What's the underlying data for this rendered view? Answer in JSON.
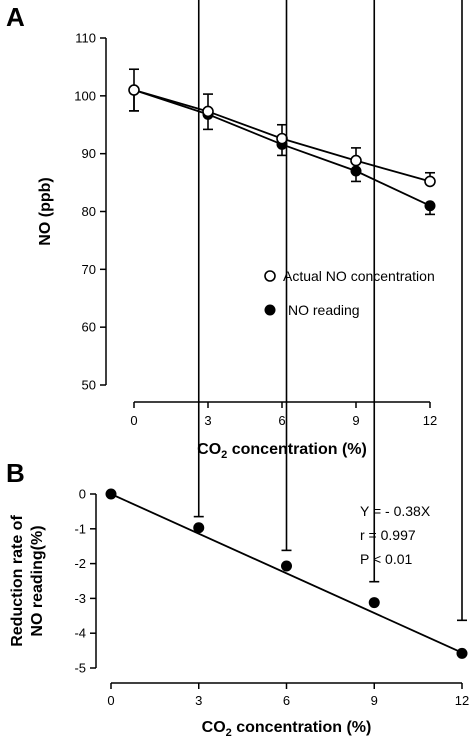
{
  "chart_data": [
    {
      "panel": "A",
      "type": "line",
      "ylabel": "NO (ppb)",
      "xlabel_main": "CO",
      "xlabel_sub": "2",
      "xlabel_rest": " concentration (%)",
      "x": [
        0,
        3,
        6,
        9,
        12
      ],
      "xticks": [
        0,
        3,
        6,
        9,
        12
      ],
      "yticks": [
        50,
        60,
        70,
        80,
        90,
        100,
        110
      ],
      "xlim": [
        0,
        12
      ],
      "ylim": [
        50,
        110
      ],
      "legend_position": "lower-right",
      "series": [
        {
          "name": "Actual NO concentration",
          "marker": "open-circle",
          "values": [
            101,
            97.3,
            92.6,
            88.8,
            85.2
          ],
          "error": [
            3.6,
            3.0,
            2.4,
            2.2,
            1.5
          ]
        },
        {
          "name": "NO reading",
          "marker": "filled-circle",
          "values": [
            101,
            96.8,
            91.6,
            87.0,
            81.0
          ],
          "error": [
            3.6,
            2.6,
            1.9,
            1.8,
            1.5
          ]
        }
      ]
    },
    {
      "panel": "B",
      "type": "scatter",
      "ylabel_line1": "Reduction rate of",
      "ylabel_line2": "NO reading(%)",
      "xlabel_main": "CO",
      "xlabel_sub": "2",
      "xlabel_rest": " concentration (%)",
      "x": [
        0,
        3,
        6,
        9,
        12
      ],
      "xticks": [
        0,
        3,
        6,
        9,
        12
      ],
      "yticks": [
        0,
        -1,
        -2,
        -3,
        -4,
        -5
      ],
      "xlim": [
        0,
        12
      ],
      "ylim": [
        -5,
        0
      ],
      "series": [
        {
          "marker": "filled-circle",
          "values": [
            0,
            -0.97,
            -2.07,
            -3.12,
            -4.58
          ],
          "error": [
            0,
            0.32,
            0.45,
            0.6,
            0.95
          ]
        }
      ],
      "fit_line": {
        "slope": -0.38,
        "intercept": 0
      },
      "annotations": [
        "Y = - 0.38X",
        "r = 0.997",
        "P < 0.01"
      ]
    }
  ]
}
